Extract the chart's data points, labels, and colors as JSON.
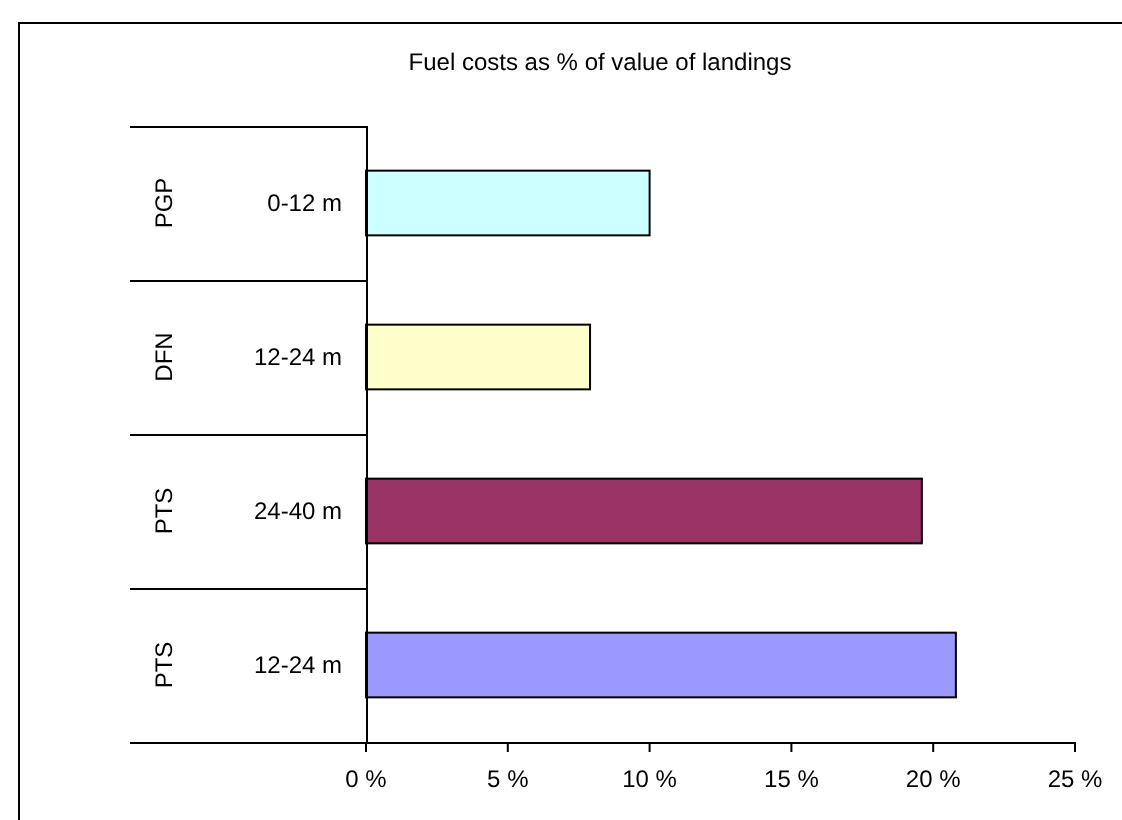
{
  "chart_data": {
    "type": "bar",
    "orientation": "horizontal",
    "title": "Fuel costs as % of value of landings",
    "categories": [
      "0-12 m",
      "12-24 m",
      "24-40 m",
      "12-24 m"
    ],
    "y2_categories": [
      "PGP",
      "DFN",
      "PTS",
      "PTS"
    ],
    "values": [
      10.0,
      7.9,
      19.6,
      20.8
    ],
    "colors": [
      "#ccffff",
      "#ffffcc",
      "#993366",
      "#9999ff"
    ],
    "xlim": [
      0,
      25
    ],
    "xticks": [
      {
        "value": 0,
        "label": "0 %"
      },
      {
        "value": 5,
        "label": "5 %"
      },
      {
        "value": 10,
        "label": "10 %"
      },
      {
        "value": 15,
        "label": "15 %"
      },
      {
        "value": 20,
        "label": "20 %"
      },
      {
        "value": 25,
        "label": "25 %"
      }
    ],
    "grid": false
  }
}
